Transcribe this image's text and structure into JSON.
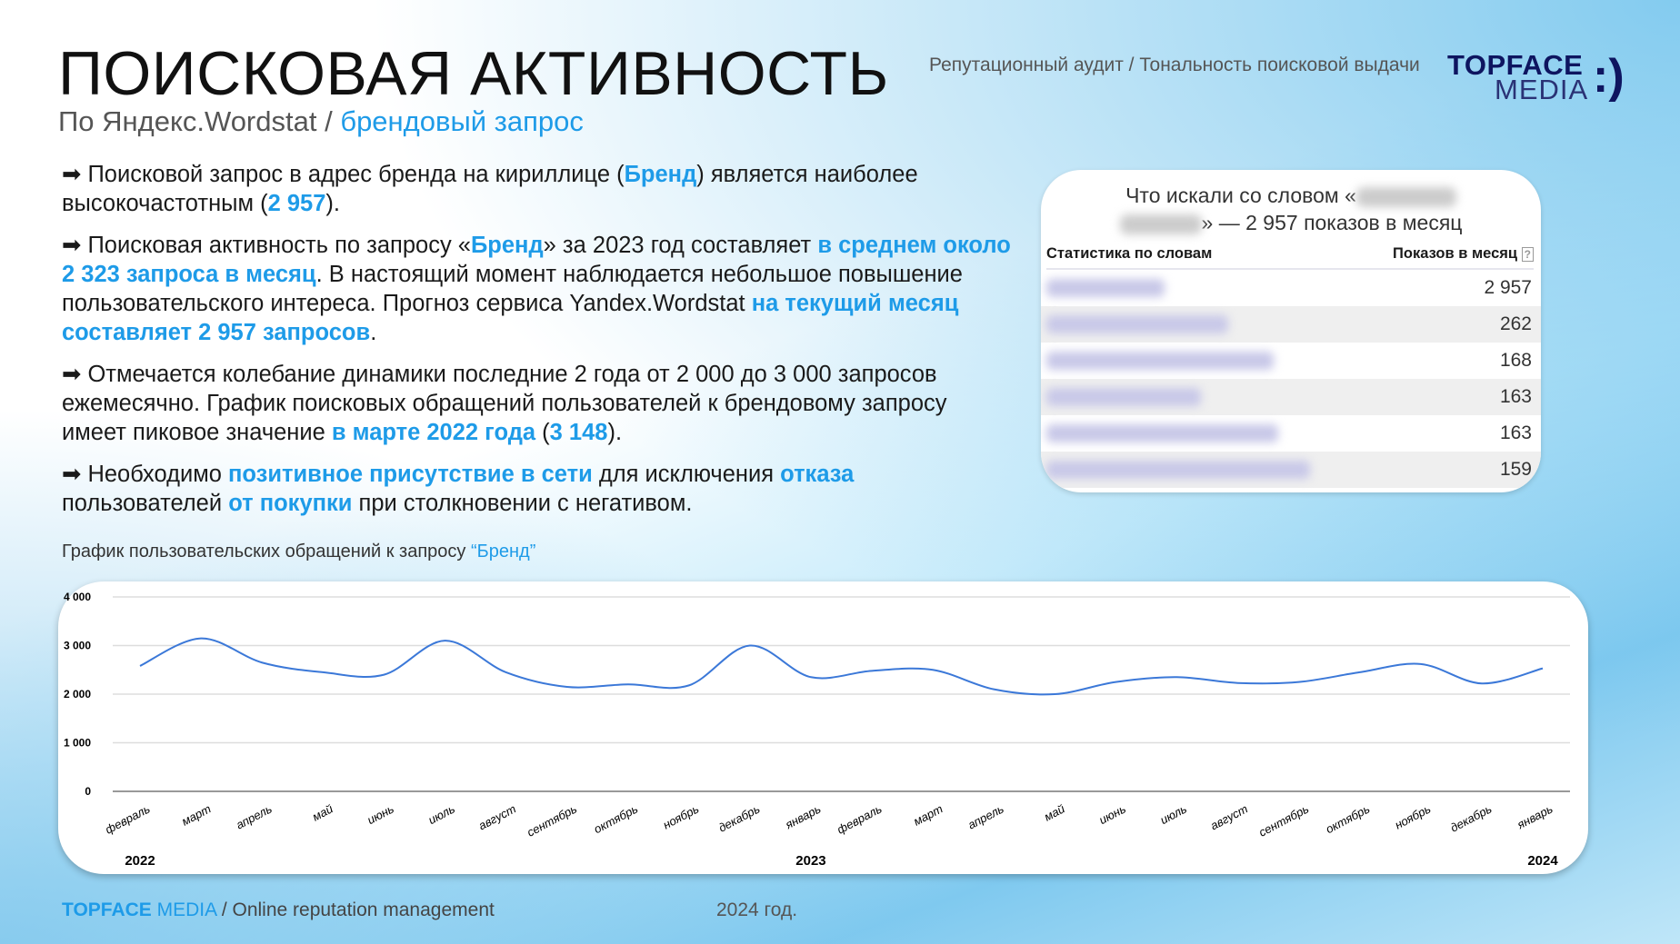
{
  "header": {
    "title": "ПОИСКОВАЯ АКТИВНОСТЬ",
    "subtitle_prefix": "По Яндекс.Wordstat / ",
    "subtitle_accent": "брендовый запрос",
    "section": "Репутационный аудит / Тональность поисковой выдачи",
    "logo_top": "TOPFACE",
    "logo_bottom": "MEDIA",
    "logo_mark": ":):"
  },
  "bullets": [
    [
      {
        "t": "➡ Поисковой запрос в адрес бренда на кириллице ("
      },
      {
        "t": "Бренд",
        "s": "b"
      },
      {
        "t": ") является наиболее высокочастотным ("
      },
      {
        "t": "2 957",
        "s": "b"
      },
      {
        "t": ")."
      }
    ],
    [
      {
        "t": "➡ Поисковая активность по запросу «"
      },
      {
        "t": "Бренд",
        "s": "b"
      },
      {
        "t": "» за 2023 год составляет "
      },
      {
        "t": "в среднем около 2 323 запроса в месяц",
        "s": "b"
      },
      {
        "t": ". В настоящий момент наблюдается небольшое повышение пользовательского интереса. Прогноз сервиса Yandex.Wordstat "
      },
      {
        "t": "на текущий месяц составляет 2 957 запросов",
        "s": "b"
      },
      {
        "t": "."
      }
    ],
    [
      {
        "t": "➡ Отмечается колебание динамики последние 2 года от 2 000 до 3 000 запросов ежемесячно. График поисковых обращений пользователей к брендовому запросу имеет пиковое значение "
      },
      {
        "t": "в марте 2022 года",
        "s": "b"
      },
      {
        "t": " ("
      },
      {
        "t": "3 148",
        "s": "b"
      },
      {
        "t": ")."
      }
    ],
    [
      {
        "t": "➡ Необходимо "
      },
      {
        "t": "позитивное присутствие в сети",
        "s": "b"
      },
      {
        "t": " для исключения "
      },
      {
        "t": "отказа",
        "s": "b"
      },
      {
        "t": " пользователей "
      },
      {
        "t": "от покупки",
        "s": "b"
      },
      {
        "t": " при столкновении с негативом."
      }
    ]
  ],
  "wordstat": {
    "heading_prefix": "Что искали со словом «",
    "heading_suffix": "» — 2 957 показов в месяц",
    "col_words": "Статистика по словам",
    "col_shows": "Показов в месяц",
    "help_icon": "?",
    "rows": [
      "2 957",
      "262",
      "168",
      "163",
      "163",
      "159"
    ]
  },
  "chart_caption": {
    "prefix": "График пользовательских обращений к запросу ",
    "accent": "“Бренд”"
  },
  "chart_data": {
    "type": "line",
    "title": "",
    "xlabel": "",
    "ylabel": "",
    "ylim": [
      0,
      4000
    ],
    "yticks": [
      0,
      1000,
      2000,
      3000,
      4000
    ],
    "ytick_labels": [
      "0",
      "1 000",
      "2 000",
      "3 000",
      "4 000"
    ],
    "grid": true,
    "line_color": "#3b78d8",
    "categories": [
      "февраль",
      "март",
      "апрель",
      "май",
      "июнь",
      "июль",
      "август",
      "сентябрь",
      "октябрь",
      "ноябрь",
      "декабрь",
      "январь",
      "февраль",
      "март",
      "апрель",
      "май",
      "июнь",
      "июль",
      "август",
      "сентябрь",
      "октябрь",
      "ноябрь",
      "декабрь",
      "январь"
    ],
    "year_labels": [
      {
        "label": "2022",
        "at": 0
      },
      {
        "label": "2023",
        "at": 11
      },
      {
        "label": "2024",
        "at": 23
      }
    ],
    "values": [
      2580,
      3148,
      2650,
      2450,
      2400,
      3100,
      2450,
      2150,
      2200,
      2180,
      3000,
      2350,
      2480,
      2500,
      2100,
      2000,
      2250,
      2350,
      2230,
      2250,
      2450,
      2620,
      2220,
      2530
    ]
  },
  "footer": {
    "brand_top": "TOPFACE",
    "brand_media": " MEDIA",
    "tagline": " / Online reputation management",
    "year": "2024 год."
  }
}
